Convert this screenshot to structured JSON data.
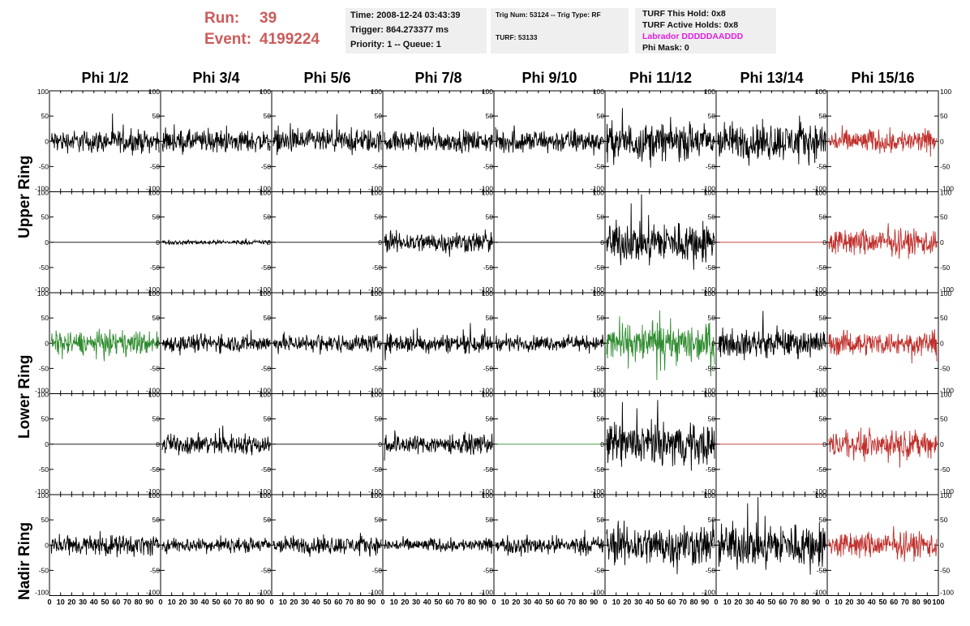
{
  "header": {
    "run_label": "Run:",
    "run_value": "39",
    "event_label": "Event:",
    "event_value": "4199224",
    "time_line": "Time: 2008-12-24 03:43:39",
    "trigger_line": "Trigger: 864.273377 ms",
    "priority_line": "Priority: 1 -- Queue: 1",
    "trig_num_line": "Trig Num: 53124 -- Trig Type: RF",
    "turf_line": "TURF: 53133",
    "turf_hold_line": "TURF This Hold: 0x8",
    "turf_active_line": "TURF Active Holds: 0x8",
    "labrador_line": "Labrador DDDDDAADDD",
    "phi_mask_line": "Phi Mask: 0"
  },
  "columns": [
    "Phi 1/2",
    "Phi 3/4",
    "Phi 5/6",
    "Phi 7/8",
    "Phi 9/10",
    "Phi 11/12",
    "Phi 13/14",
    "Phi 15/16"
  ],
  "rings": [
    "Upper Ring",
    "Lower Ring",
    "Nadir Ring"
  ],
  "colors": {
    "header_red": "#cc5b5b",
    "labrador_magenta": "#e21de2",
    "trace_black": "#000000",
    "trace_red": "#c0302c",
    "trace_green": "#2e8b2e"
  },
  "chart_data": {
    "type": "line",
    "xlim": [
      0,
      100
    ],
    "ylim": [
      -100,
      100
    ],
    "x_ticks": [
      "0",
      "10",
      "20",
      "30",
      "40",
      "50",
      "60",
      "70",
      "80",
      "90",
      "100"
    ],
    "y_ticks_top_panel": [
      "100",
      "50",
      "0",
      "-50",
      "-100"
    ],
    "y_ticks_other_panels": [
      "100",
      "50",
      "0",
      "-50",
      "-100"
    ],
    "grid": false,
    "panels_rows": 5,
    "panels_cols": 8,
    "panel_color": [
      [
        "black",
        "black",
        "black",
        "black",
        "black",
        "black",
        "black",
        "red"
      ],
      [
        "black",
        "black",
        "black",
        "black",
        "black",
        "black",
        "red",
        "red"
      ],
      [
        "green",
        "black",
        "black",
        "black",
        "black",
        "green",
        "black",
        "red"
      ],
      [
        "black",
        "black",
        "black",
        "black",
        "green",
        "black",
        "red",
        "red"
      ],
      [
        "black",
        "black",
        "black",
        "black",
        "black",
        "black",
        "black",
        "red"
      ]
    ],
    "panel_amplitude": [
      [
        15,
        15,
        16,
        14,
        16,
        25,
        25,
        16
      ],
      [
        0,
        3,
        0,
        14,
        0,
        28,
        0,
        18
      ],
      [
        16,
        12,
        12,
        13,
        10,
        26,
        18,
        16
      ],
      [
        0,
        14,
        0,
        13,
        0,
        28,
        0,
        18
      ],
      [
        14,
        10,
        12,
        9,
        12,
        28,
        30,
        18
      ]
    ]
  }
}
